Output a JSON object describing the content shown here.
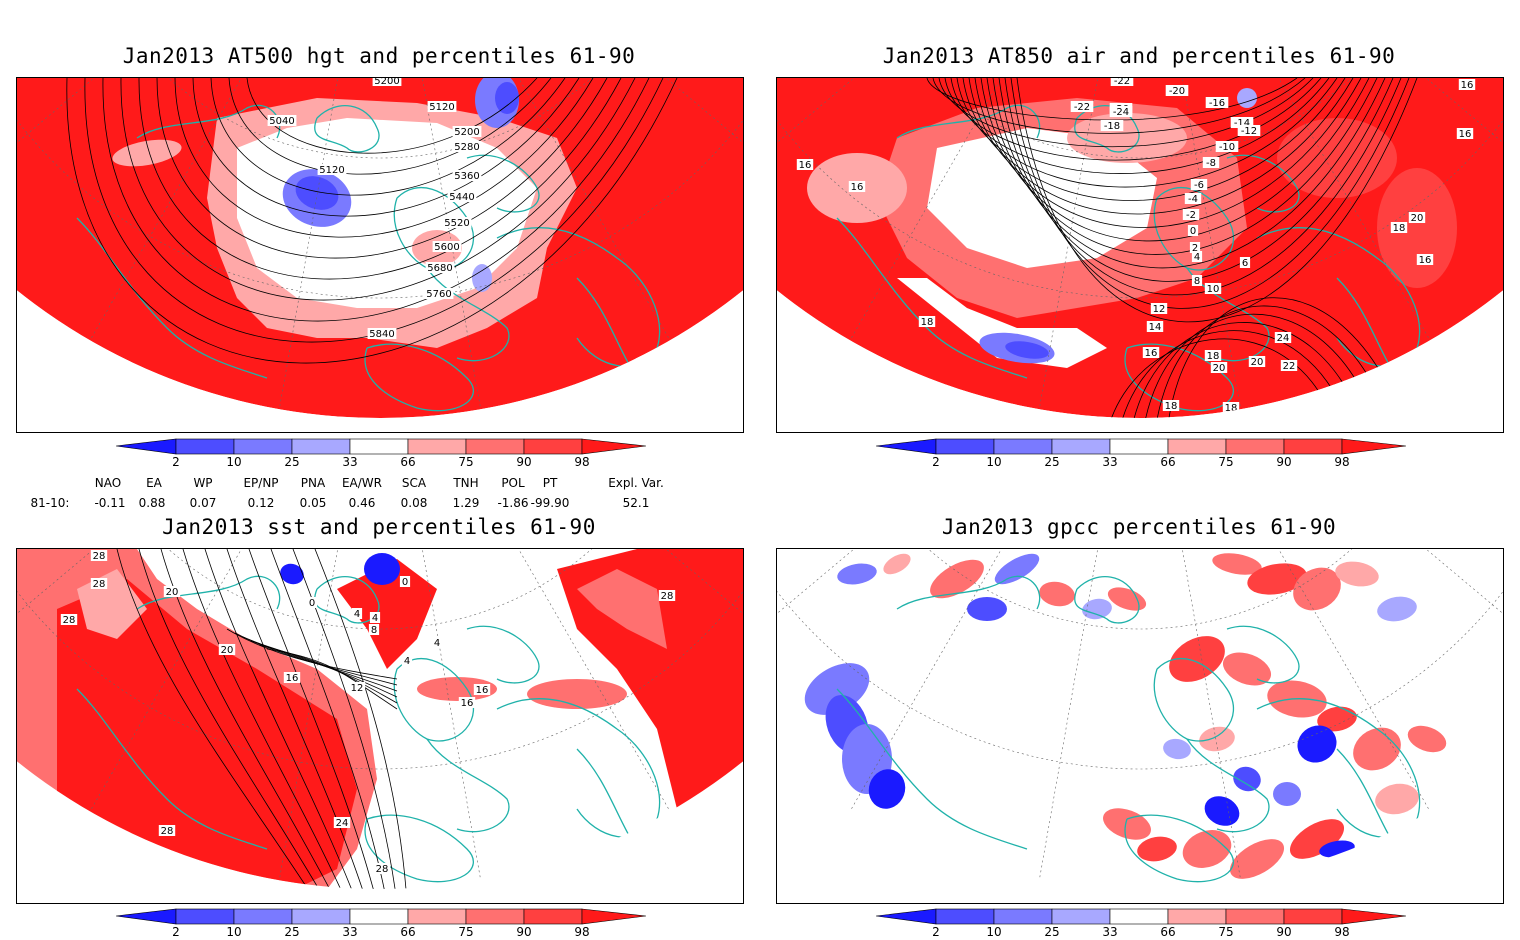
{
  "panels": [
    {
      "id": "tl",
      "title": "Jan2013 AT500 hgt and percentiles 61-90",
      "contour_labels": [
        "5200",
        "5120",
        "5200",
        "5280",
        "5360",
        "5440",
        "5520",
        "5600",
        "5680",
        "5760",
        "5840",
        "5040",
        "5120"
      ]
    },
    {
      "id": "tr",
      "title": "Jan2013 AT850 air and percentiles 61-90",
      "contour_labels": [
        "16",
        "16",
        "18",
        "16",
        "-22",
        "-20",
        "-18",
        "-24",
        "-22",
        "-16",
        "-20",
        "-14",
        "-12",
        "-10",
        "-8",
        "-6",
        "-4",
        "-2",
        "0",
        "2",
        "4",
        "6",
        "8",
        "10",
        "12",
        "14",
        "16",
        "18",
        "20",
        "20",
        "22",
        "24",
        "18",
        "18",
        "16",
        "18",
        "20",
        "16"
      ]
    },
    {
      "id": "bl",
      "title": "Jan2013 sst and percentiles 61-90",
      "contour_labels": [
        "28",
        "28",
        "28",
        "20",
        "20",
        "0",
        "0",
        "4",
        "4",
        "8",
        "4",
        "4",
        "16",
        "12",
        "16",
        "16",
        "24",
        "28",
        "28",
        "28"
      ]
    },
    {
      "id": "br",
      "title": "Jan2013 gpcc percentiles 61-90",
      "contour_labels": []
    }
  ],
  "colorbar": {
    "labels": [
      "2",
      "10",
      "25",
      "33",
      "66",
      "75",
      "90",
      "98"
    ],
    "colors": [
      "#1a1aff",
      "#4d4dff",
      "#7a7aff",
      "#a8a8ff",
      "#ffffff",
      "#ffa8a8",
      "#ff7070",
      "#ff4040",
      "#ff1a1a"
    ]
  },
  "indices": {
    "headers": [
      "NAO",
      "EA",
      "WP",
      "EP/NP",
      "PNA",
      "EA/WR",
      "SCA",
      "TNH",
      "POL",
      "PT",
      "Expl. Var."
    ],
    "row_label": "81-10:",
    "values": [
      "-0.11",
      "0.88",
      "0.07",
      "0.12",
      "0.05",
      "0.46",
      "0.08",
      "1.29",
      "-1.86",
      "-99.90",
      "52.1"
    ]
  }
}
